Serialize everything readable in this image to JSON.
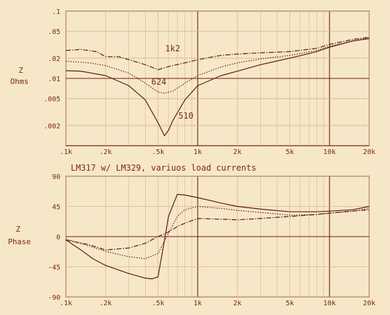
{
  "chart_data": [
    {
      "type": "line",
      "title": "",
      "xlabel": "",
      "ylabel": "Z Ohms",
      "ylabel_lines": [
        "Z",
        "Ohms"
      ],
      "x_scale": "log",
      "y_scale": "log",
      "xlim": [
        100,
        20000
      ],
      "ylim": [
        0.001,
        0.1
      ],
      "x_ticks": [
        100,
        200,
        500,
        1000,
        2000,
        5000,
        10000,
        20000
      ],
      "x_tick_labels": [
        ".1k",
        ".2k",
        ".5k",
        "1k",
        "2k",
        "5k",
        "10k",
        "20k"
      ],
      "y_ticks": [
        0.1,
        0.05,
        0.02,
        0.01,
        0.005,
        0.002
      ],
      "y_tick_labels": [
        ".1",
        ".05",
        ".02",
        ".01",
        ".005",
        ".002"
      ],
      "grid": true,
      "series": [
        {
          "name": "1k2",
          "style": "dashdot",
          "x": [
            100,
            130,
            170,
            200,
            250,
            300,
            400,
            500,
            600,
            800,
            1000,
            1500,
            2000,
            3000,
            5000,
            8000,
            10000,
            15000,
            20000
          ],
          "y": [
            0.026,
            0.027,
            0.025,
            0.021,
            0.021,
            0.019,
            0.016,
            0.0135,
            0.015,
            0.017,
            0.019,
            0.022,
            0.023,
            0.024,
            0.025,
            0.028,
            0.032,
            0.038,
            0.041
          ]
        },
        {
          "name": "624",
          "style": "dotted",
          "x": [
            100,
            150,
            200,
            300,
            400,
            500,
            560,
            650,
            800,
            1000,
            1500,
            2000,
            3000,
            5000,
            8000,
            10000,
            15000,
            20000
          ],
          "y": [
            0.018,
            0.017,
            0.0155,
            0.012,
            0.0085,
            0.0063,
            0.006,
            0.0065,
            0.0085,
            0.011,
            0.0148,
            0.017,
            0.0195,
            0.022,
            0.026,
            0.03,
            0.036,
            0.04
          ]
        },
        {
          "name": "510",
          "style": "solid",
          "x": [
            100,
            130,
            200,
            300,
            400,
            500,
            560,
            600,
            650,
            800,
            1000,
            1500,
            2000,
            3000,
            5000,
            8000,
            10000,
            15000,
            20000
          ],
          "y": [
            0.013,
            0.0128,
            0.011,
            0.0078,
            0.0048,
            0.0022,
            0.0014,
            0.0017,
            0.0024,
            0.0048,
            0.0078,
            0.011,
            0.0128,
            0.016,
            0.02,
            0.025,
            0.029,
            0.036,
            0.039
          ]
        }
      ]
    },
    {
      "type": "line",
      "title": "LM317 w/ LM329, variuos load currents",
      "xlabel": "",
      "ylabel": "Z Phase",
      "ylabel_lines": [
        "Z",
        "Phase"
      ],
      "x_scale": "log",
      "xlim": [
        100,
        20000
      ],
      "ylim": [
        -90,
        90
      ],
      "x_ticks": [
        100,
        200,
        500,
        1000,
        2000,
        5000,
        10000,
        20000
      ],
      "x_tick_labels": [
        ".1k",
        ".2k",
        ".5k",
        "1k",
        "2k",
        "5k",
        "10k",
        "20k"
      ],
      "y_ticks": [
        90,
        45,
        0,
        -45,
        -90
      ],
      "y_tick_labels": [
        "90",
        "45",
        "0",
        "-45",
        "-90"
      ],
      "grid": true,
      "series": [
        {
          "name": "510",
          "style": "solid",
          "x": [
            100,
            130,
            160,
            200,
            300,
            400,
            450,
            500,
            560,
            600,
            700,
            800,
            1000,
            1300,
            1500,
            2000,
            3000,
            5000,
            8000,
            10000,
            15000,
            20000
          ],
          "y": [
            -5,
            -20,
            -33,
            -43,
            -55,
            -62,
            -63,
            -60,
            -5,
            30,
            63,
            62,
            58,
            53,
            50,
            45,
            41,
            37,
            37,
            38,
            40,
            45
          ]
        },
        {
          "name": "624",
          "style": "dotted",
          "x": [
            100,
            150,
            200,
            300,
            400,
            500,
            600,
            700,
            800,
            1000,
            1500,
            2000,
            3000,
            5000,
            8000,
            10000,
            15000,
            20000
          ],
          "y": [
            -4,
            -14,
            -22,
            -30,
            -33,
            -25,
            5,
            30,
            40,
            45,
            42,
            39,
            36,
            32,
            33,
            35,
            38,
            42
          ]
        },
        {
          "name": "1k2",
          "style": "dashdot",
          "x": [
            100,
            150,
            200,
            300,
            400,
            500,
            600,
            700,
            800,
            1000,
            1500,
            2000,
            3000,
            5000,
            8000,
            10000,
            15000,
            20000
          ],
          "y": [
            -5,
            -12,
            -20,
            -17,
            -10,
            0,
            7,
            15,
            20,
            27,
            26,
            25,
            27,
            30,
            33,
            35,
            38,
            40
          ]
        }
      ]
    }
  ],
  "annotations": {
    "top_label_1k2": "1k2",
    "top_label_624": "624",
    "top_label_510": "510"
  },
  "colors": {
    "background": "#f6e7c8",
    "ink": "#7a2a14",
    "grid_major": "#6b1f12",
    "grid_minor": "#d9b58a",
    "series": "#5a1a10"
  }
}
